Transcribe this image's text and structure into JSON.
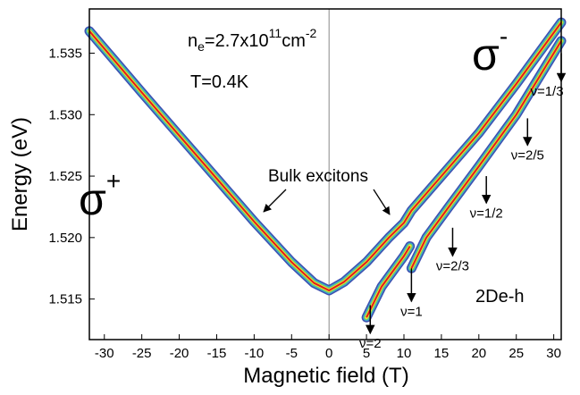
{
  "chart_data": {
    "type": "line",
    "xlabel": "Magnetic field (T)",
    "ylabel": "Energy (eV)",
    "xlim": [
      -32,
      31
    ],
    "ylim": [
      1.5117,
      1.5386
    ],
    "xticks": [
      -30,
      -25,
      -20,
      -15,
      -10,
      -5,
      0,
      5,
      10,
      15,
      20,
      25,
      30
    ],
    "yticks": [
      1.515,
      {
        "value": 1.52,
        "label": "1.520"
      },
      1.525,
      {
        "value": 1.53,
        "label": "1.530"
      },
      1.535
    ],
    "reference_line_x": 0,
    "series": [
      {
        "color": "#e31a1c",
        "x": [
          -32,
          -25,
          -20,
          -15,
          -10,
          -5,
          -2,
          0,
          2,
          5,
          8,
          10,
          11,
          15,
          20,
          25,
          31
        ],
        "values": [
          1.5368,
          1.5318,
          1.5283,
          1.5248,
          1.5213,
          1.518,
          1.5163,
          1.5157,
          1.5164,
          1.518,
          1.52,
          1.5212,
          1.5222,
          1.525,
          1.5285,
          1.5325,
          1.5375
        ]
      },
      {
        "color": "#e31a1c",
        "x": [
          5,
          7,
          10,
          10.8,
          null,
          11,
          13,
          16,
          20,
          25,
          31
        ],
        "values": [
          1.5135,
          1.516,
          1.5185,
          1.5193,
          null,
          1.5175,
          1.52,
          1.5225,
          1.5258,
          1.53,
          1.536
        ]
      }
    ],
    "density_label": [
      "n",
      "e",
      "=2.7x10",
      "11",
      "cm",
      "-2"
    ],
    "temperature_label": "T=0.4K",
    "sigma_plus": [
      "σ",
      "+"
    ],
    "sigma_minus": [
      "σ",
      "-"
    ],
    "bulk_label": "Bulk excitons",
    "sample_label": "2De-h",
    "filling_factors": [
      {
        "label": "ν=2",
        "x": 5.5,
        "y": [
          1.5145,
          1.5122
        ]
      },
      {
        "label": "ν=1",
        "x": 11,
        "y": [
          1.5175,
          1.5148
        ]
      },
      {
        "label": "ν=2/3",
        "x": 16.5,
        "y": [
          1.5208,
          1.5185
        ]
      },
      {
        "label": "ν=1/2",
        "x": 21,
        "y": [
          1.525,
          1.5228
        ]
      },
      {
        "label": "ν=2/5",
        "x": 26.5,
        "y": [
          1.5297,
          1.5275
        ]
      },
      {
        "label": "ν=1/3",
        "x": 31,
        "y": [
          1.535,
          1.5327
        ]
      }
    ]
  }
}
